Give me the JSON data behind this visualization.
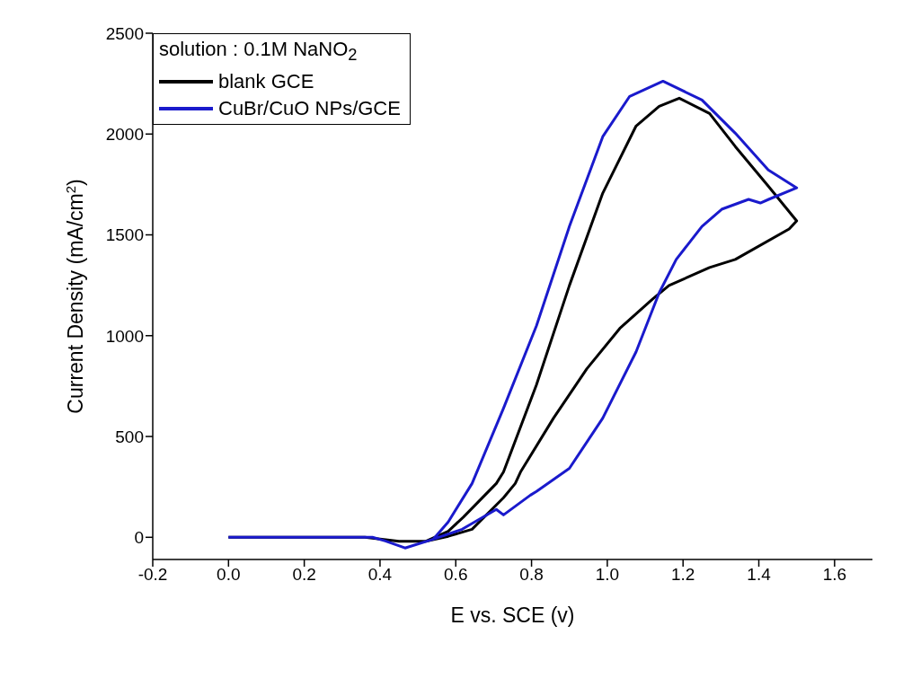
{
  "chart_data": {
    "type": "line",
    "xlabel": "E vs. SCE (v)",
    "ylabel": "Current Density (mA/cm$^{2}$)",
    "legend_title": "solution : 0.1M NaNO$_{2}$",
    "xlim": [
      -0.2,
      1.7
    ],
    "xticks": [
      -0.2,
      {
        "value": 0.0,
        "label": "0.0"
      },
      0.2,
      0.4,
      0.6,
      0.8,
      {
        "value": 1.0,
        "label": "1.0"
      },
      1.2,
      1.4,
      1.6
    ],
    "ylim": [
      -110,
      2500
    ],
    "yticks": [
      0,
      500,
      1000,
      1500,
      2000,
      2500
    ],
    "grid": false,
    "legend": "top left",
    "marker": "none",
    "line_style": "solid",
    "series": [
      {
        "name": "blank GCE",
        "color": "#000000",
        "x": [
          0,
          0.2,
          0.36,
          0.45,
          0.52,
          0.58,
          0.62,
          0.707,
          0.726,
          0.813,
          0.9,
          0.988,
          1.076,
          1.137,
          1.19,
          1.27,
          1.338,
          1.425,
          1.5,
          1.48,
          1.338,
          1.27,
          1.163,
          1.12,
          1.033,
          0.946,
          0.858,
          0.771,
          0.757,
          0.726,
          0.643,
          0.58,
          0.52,
          0.45,
          0.36,
          0.2
        ],
        "values": [
          0,
          0,
          0,
          -20,
          -20,
          30,
          100,
          267,
          324,
          756,
          1249,
          1707,
          2040,
          2138,
          2178,
          2102,
          1938,
          1742,
          1569,
          1529,
          1378,
          1338,
          1249,
          1182,
          1036,
          836,
          591,
          324,
          267,
          196,
          40,
          5,
          -20,
          -20,
          0,
          0
        ]
      },
      {
        "name": "CuBr/CuO NPs/GCE",
        "color": "#1a1acc",
        "x": [
          0,
          0.2,
          0.38,
          0.414,
          0.466,
          0.541,
          0.58,
          0.643,
          0.726,
          0.813,
          0.9,
          0.988,
          1.059,
          1.147,
          1.25,
          1.338,
          1.425,
          1.5,
          1.426,
          1.404,
          1.373,
          1.302,
          1.25,
          1.182,
          1.137,
          1.076,
          0.988,
          0.9,
          0.813,
          0.797,
          0.726,
          0.707,
          0.617,
          0.541,
          0.466,
          0.414,
          0.38,
          0.2
        ],
        "values": [
          0,
          0,
          0,
          -18,
          -53,
          -9,
          76,
          267,
          640,
          1049,
          1542,
          1987,
          2187,
          2262,
          2169,
          2004,
          1822,
          1733,
          1676,
          1658,
          1676,
          1627,
          1542,
          1378,
          1213,
          920,
          591,
          342,
          227,
          209,
          111,
          138,
          40,
          -9,
          -53,
          -18,
          0,
          0
        ]
      }
    ]
  }
}
